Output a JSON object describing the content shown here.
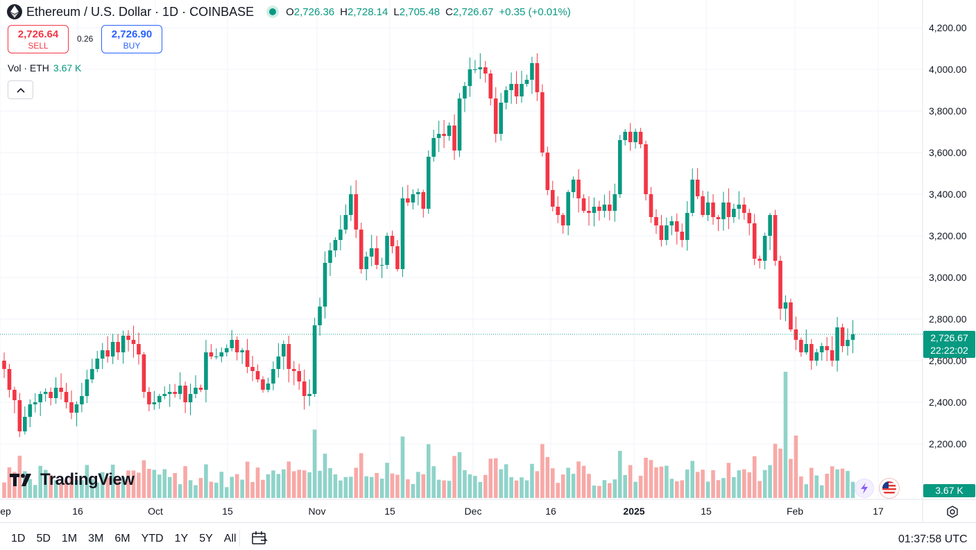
{
  "header": {
    "title": "Ethereum / U.S. Dollar · 1D · COINBASE",
    "o_label": "O",
    "o_value": "2,726.36",
    "h_label": "H",
    "h_value": "2,728.14",
    "l_label": "L",
    "l_value": "2,705.48",
    "c_label": "C",
    "c_value": "2,726.67",
    "change": "+0.35 (+0.01%)"
  },
  "trade": {
    "sell_price": "2,726.64",
    "sell_label": "SELL",
    "spread": "0.26",
    "buy_price": "2,726.90",
    "buy_label": "BUY"
  },
  "volume": {
    "label": "Vol · ETH",
    "value": "3.67 K"
  },
  "brand": "TradingView",
  "price_tag": {
    "price": "2,726.67",
    "countdown": "22:22:02",
    "volume": "3.67 K"
  },
  "timeframes": [
    "1D",
    "5D",
    "1M",
    "3M",
    "6M",
    "YTD",
    "1Y",
    "5Y",
    "All"
  ],
  "clock": "01:37:58 UTC",
  "colors": {
    "up": "#089981",
    "down": "#f23645",
    "up_vol": "#8fd3c9",
    "down_vol": "#f7a9a7",
    "grid": "#f0f3fa"
  },
  "icons": [
    "ethereum-logo-icon",
    "live-dot-icon",
    "chevron-up-icon",
    "calendar-icon",
    "gear-icon",
    "lightning-event-icon",
    "us-flag-icon"
  ],
  "chart_data": {
    "type": "candlestick",
    "y_axis": {
      "ticks": [
        2200,
        2400,
        2600,
        2800,
        3000,
        3200,
        3400,
        3600,
        3800,
        4000,
        4200
      ],
      "tick_labels": [
        "2,200.00",
        "2,400.00",
        "2,600.00",
        "2,800.00",
        "3,000.00",
        "3,200.00",
        "3,400.00",
        "3,600.00",
        "3,800.00",
        "4,000.00",
        "4,200.00"
      ]
    },
    "x_axis": {
      "tick_labels": [
        "ep",
        "16",
        "Oct",
        "15",
        "Nov",
        "15",
        "Dec",
        "16",
        "2025",
        "15",
        "Feb",
        "17"
      ]
    },
    "last_price": 2726.67,
    "close": [
      2560,
      2460,
      2410,
      2260,
      2330,
      2390,
      2400,
      2440,
      2450,
      2420,
      2470,
      2450,
      2400,
      2350,
      2390,
      2430,
      2510,
      2560,
      2610,
      2650,
      2620,
      2690,
      2640,
      2720,
      2700,
      2680,
      2630,
      2450,
      2390,
      2400,
      2430,
      2440,
      2450,
      2440,
      2480,
      2400,
      2440,
      2470,
      2460,
      2640,
      2620,
      2620,
      2640,
      2660,
      2700,
      2640,
      2650,
      2570,
      2550,
      2510,
      2460,
      2490,
      2560,
      2620,
      2680,
      2560,
      2550,
      2500,
      2430,
      2440,
      2770,
      2860,
      3070,
      3130,
      3180,
      3230,
      3300,
      3400,
      3230,
      3040,
      3100,
      3140,
      3060,
      3060,
      3200,
      3150,
      3040,
      3380,
      3360,
      3400,
      3410,
      3330,
      3580,
      3670,
      3690,
      3680,
      3730,
      3610,
      3860,
      3920,
      4000,
      4000,
      4010,
      3980,
      3860,
      3690,
      3840,
      3900,
      3930,
      3870,
      3930,
      3950,
      4030,
      3890,
      3600,
      3420,
      3340,
      3300,
      3250,
      3410,
      3470,
      3380,
      3320,
      3310,
      3340,
      3320,
      3350,
      3320,
      3400,
      3660,
      3700,
      3650,
      3700,
      3640,
      3400,
      3290,
      3250,
      3180,
      3250,
      3270,
      3220,
      3180,
      3310,
      3470,
      3390,
      3300,
      3360,
      3290,
      3280,
      3360,
      3290,
      3330,
      3350,
      3310,
      3260,
      3090,
      3080,
      3200,
      3300,
      3080,
      2850,
      2880,
      2750,
      2700,
      2640,
      2680,
      2600,
      2640,
      2670,
      2650,
      2600,
      2760,
      2670,
      2700,
      2727
    ]
  }
}
